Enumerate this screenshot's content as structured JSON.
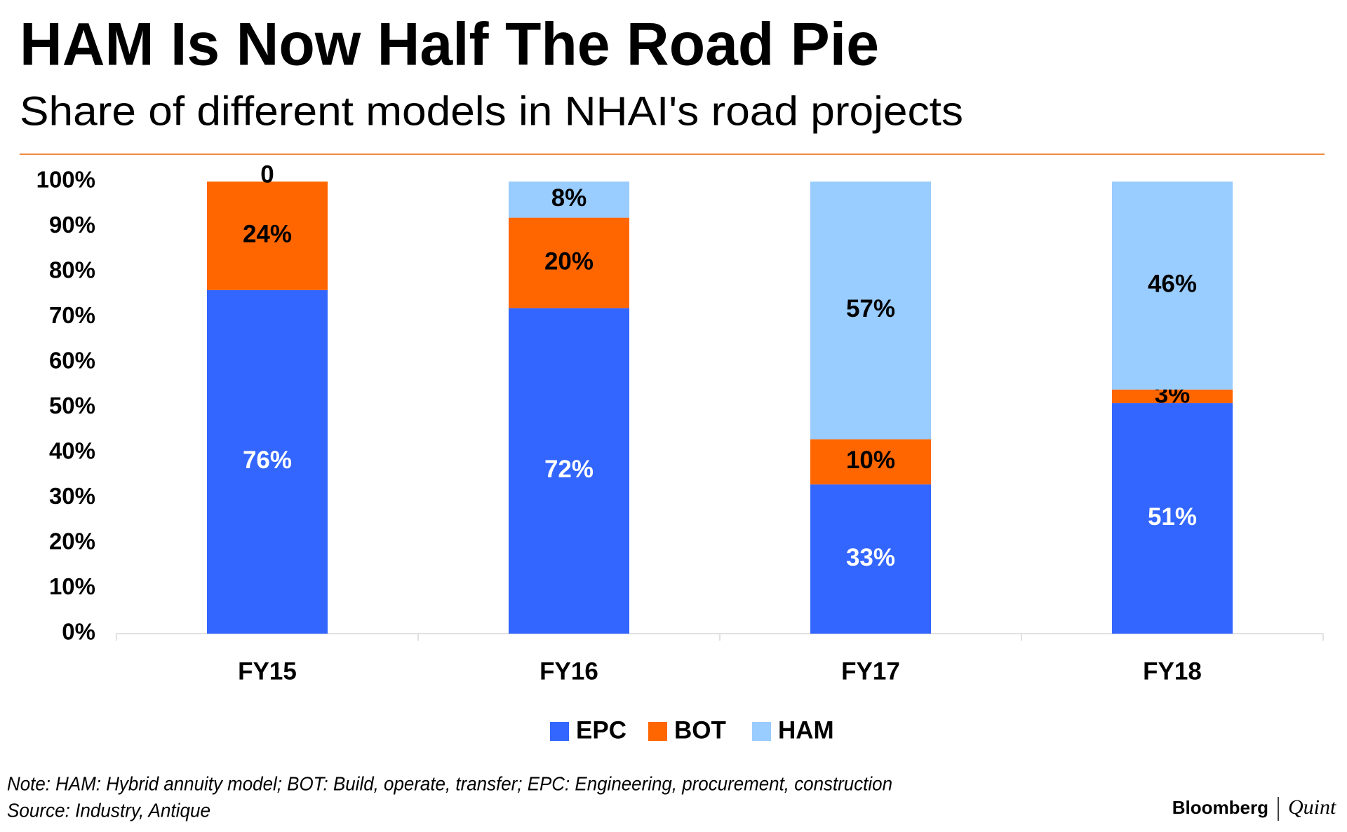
{
  "chart_data": {
    "type": "stacked_bar",
    "title": "HAM Is Now Half The Road Pie",
    "subtitle": "Share of different models in NHAI's road projects",
    "categories": [
      "FY15",
      "FY16",
      "FY17",
      "FY18"
    ],
    "series": [
      {
        "name": "EPC",
        "color": "#3366ff",
        "values": [
          76,
          72,
          33,
          51
        ],
        "value_labels": [
          "76%",
          "72%",
          "33%",
          "51%"
        ]
      },
      {
        "name": "BOT",
        "color": "#ff6600",
        "values": [
          24,
          20,
          10,
          3
        ],
        "value_labels": [
          "24%",
          "20%",
          "10%",
          "3%"
        ]
      },
      {
        "name": "HAM",
        "color": "#99ccff",
        "values": [
          0,
          8,
          57,
          46
        ],
        "value_labels": [
          "0",
          "8%",
          "57%",
          "46%"
        ]
      }
    ],
    "ylim": [
      0,
      100
    ],
    "yticks": [
      {
        "value": 0,
        "label": "0%"
      },
      {
        "value": 10,
        "label": "10%"
      },
      {
        "value": 20,
        "label": "20%"
      },
      {
        "value": 30,
        "label": "30%"
      },
      {
        "value": 40,
        "label": "40%"
      },
      {
        "value": 50,
        "label": "50%"
      },
      {
        "value": 60,
        "label": "60%"
      },
      {
        "value": 70,
        "label": "70%"
      },
      {
        "value": 80,
        "label": "80%"
      },
      {
        "value": 90,
        "label": "90%"
      },
      {
        "value": 100,
        "label": "100%"
      }
    ],
    "legend": "bottom",
    "note": "Note: HAM: Hybrid annuity model; BOT: Build, operate, transfer; EPC: Engineering, procurement, construction",
    "source": "Source: Industry, Antique",
    "branding": [
      "Bloomberg",
      "Quint"
    ]
  }
}
